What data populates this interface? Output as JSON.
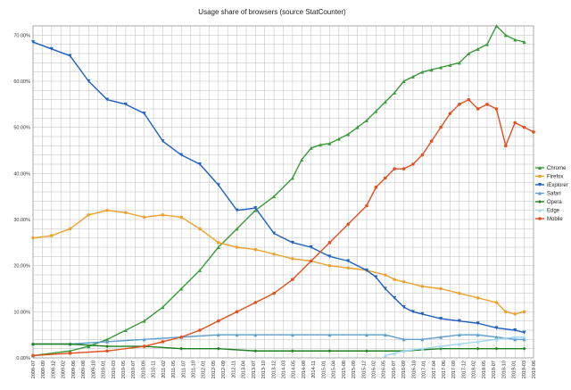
{
  "chart_data": {
    "type": "line",
    "title": "Usage share of browsers (source StatCounter)",
    "xlabel": "",
    "ylabel": "",
    "ylim": [
      0,
      72
    ],
    "y_ticks": [
      0,
      10,
      20,
      30,
      40,
      50,
      60,
      70
    ],
    "y_tick_labels": [
      "0.00%",
      "10.00%",
      "20.00%",
      "30.00%",
      "40.00%",
      "50.00%",
      "60.00%",
      "70.00%"
    ],
    "x_tick_labels": [
      "2008-07",
      "2008-09",
      "2008-12",
      "2009-02",
      "2009-06",
      "2009-08",
      "2009-10",
      "2010-01",
      "2010-03",
      "2010-05",
      "2010-07",
      "2010-09",
      "2010-11",
      "2011-02",
      "2011-05",
      "2011-07",
      "2011-10",
      "2012-01",
      "2012-05",
      "2012-09",
      "2012-11",
      "2013-04",
      "2013-07",
      "2013-10",
      "2013-12",
      "2014-03",
      "2014-05",
      "2014-08",
      "2014-11",
      "2015-01",
      "2015-04",
      "2015-08",
      "2015-09",
      "2015-12",
      "2016-02",
      "2016-05",
      "2016-07",
      "2016-09",
      "2016-10",
      "2017-01",
      "2017-04",
      "2017-06",
      "2017-09",
      "2017-12",
      "2018-02",
      "2018-05",
      "2018-07",
      "2018-10",
      "2019-01",
      "2019-03",
      "2019-06"
    ],
    "grid": true,
    "legend_position": "right",
    "series": [
      {
        "name": "Chrome",
        "color": "#3b9a3b",
        "marker": "triangle-up",
        "values": [
          [
            0,
            0.5
          ],
          [
            4,
            1.5
          ],
          [
            6,
            2.5
          ],
          [
            8,
            4
          ],
          [
            10,
            6
          ],
          [
            12,
            8
          ],
          [
            14,
            11
          ],
          [
            16,
            15
          ],
          [
            18,
            19
          ],
          [
            20,
            24
          ],
          [
            22,
            28
          ],
          [
            24,
            32
          ],
          [
            26,
            35
          ],
          [
            28,
            39
          ],
          [
            29,
            43
          ],
          [
            30,
            45.5
          ],
          [
            31,
            46.2
          ],
          [
            32,
            46.5
          ],
          [
            33,
            47.5
          ],
          [
            34,
            48.5
          ],
          [
            35,
            50
          ],
          [
            36,
            51.5
          ],
          [
            37,
            53.5
          ],
          [
            38,
            55.5
          ],
          [
            39,
            57.5
          ],
          [
            40,
            60
          ],
          [
            41,
            61
          ],
          [
            42,
            62
          ],
          [
            43,
            62.5
          ],
          [
            44,
            63
          ],
          [
            45,
            63.5
          ],
          [
            46,
            64
          ],
          [
            47,
            66
          ],
          [
            48,
            67
          ],
          [
            49,
            68
          ],
          [
            50,
            72
          ],
          [
            51,
            70
          ],
          [
            52,
            69
          ],
          [
            53,
            68.5
          ]
        ]
      },
      {
        "name": "Firefox",
        "color": "#f0a030",
        "marker": "circle",
        "values": [
          [
            0,
            26
          ],
          [
            2,
            26.5
          ],
          [
            4,
            28
          ],
          [
            6,
            31
          ],
          [
            8,
            32
          ],
          [
            10,
            31.5
          ],
          [
            12,
            30.5
          ],
          [
            14,
            31
          ],
          [
            16,
            30.5
          ],
          [
            18,
            28
          ],
          [
            20,
            25
          ],
          [
            22,
            24
          ],
          [
            24,
            23.5
          ],
          [
            26,
            22.5
          ],
          [
            28,
            21.5
          ],
          [
            30,
            21
          ],
          [
            32,
            20
          ],
          [
            34,
            19.5
          ],
          [
            36,
            19
          ],
          [
            38,
            18
          ],
          [
            39,
            17
          ],
          [
            40,
            16.5
          ],
          [
            42,
            15.5
          ],
          [
            44,
            15
          ],
          [
            46,
            14
          ],
          [
            48,
            13
          ],
          [
            50,
            12
          ],
          [
            51,
            10
          ],
          [
            52,
            9.5
          ],
          [
            53,
            10
          ]
        ]
      },
      {
        "name": "iExplorer",
        "color": "#1f5fbf",
        "marker": "triangle-down",
        "values": [
          [
            0,
            68.5
          ],
          [
            2,
            67
          ],
          [
            4,
            65.5
          ],
          [
            6,
            60
          ],
          [
            8,
            56
          ],
          [
            10,
            55
          ],
          [
            12,
            53
          ],
          [
            14,
            47
          ],
          [
            16,
            44
          ],
          [
            18,
            42
          ],
          [
            20,
            37.5
          ],
          [
            22,
            32
          ],
          [
            24,
            32.5
          ],
          [
            26,
            27
          ],
          [
            28,
            25
          ],
          [
            30,
            24
          ],
          [
            32,
            22
          ],
          [
            34,
            21
          ],
          [
            36,
            19
          ],
          [
            37,
            17.5
          ],
          [
            38,
            15
          ],
          [
            39,
            13
          ],
          [
            40,
            11
          ],
          [
            41,
            10
          ],
          [
            42,
            9.5
          ],
          [
            44,
            8.5
          ],
          [
            46,
            8
          ],
          [
            48,
            7.5
          ],
          [
            50,
            6.5
          ],
          [
            52,
            6
          ],
          [
            53,
            5.5
          ]
        ]
      },
      {
        "name": "Safari",
        "color": "#5f9fd0",
        "marker": "triangle-up",
        "values": [
          [
            0,
            3
          ],
          [
            4,
            3
          ],
          [
            8,
            3.5
          ],
          [
            12,
            4
          ],
          [
            16,
            4.5
          ],
          [
            20,
            5
          ],
          [
            22,
            5
          ],
          [
            24,
            5
          ],
          [
            28,
            5
          ],
          [
            32,
            5
          ],
          [
            36,
            5
          ],
          [
            38,
            5
          ],
          [
            40,
            4
          ],
          [
            42,
            4
          ],
          [
            44,
            4.5
          ],
          [
            46,
            5
          ],
          [
            48,
            5
          ],
          [
            50,
            4.5
          ],
          [
            52,
            4
          ],
          [
            53,
            4
          ]
        ]
      },
      {
        "name": "Opera",
        "color": "#1f7f1f",
        "marker": "diamond",
        "values": [
          [
            0,
            3
          ],
          [
            4,
            3
          ],
          [
            8,
            2.5
          ],
          [
            12,
            2.5
          ],
          [
            16,
            2
          ],
          [
            20,
            2
          ],
          [
            24,
            1.5
          ],
          [
            28,
            1.5
          ],
          [
            32,
            1.5
          ],
          [
            36,
            1.5
          ],
          [
            40,
            1.5
          ],
          [
            44,
            2
          ],
          [
            48,
            2
          ],
          [
            50,
            2
          ],
          [
            53,
            2
          ]
        ]
      },
      {
        "name": "Edge",
        "color": "#9fd8f0",
        "marker": "triangle-up",
        "values": [
          [
            38,
            0.5
          ],
          [
            39,
            1
          ],
          [
            40,
            1.5
          ],
          [
            42,
            2
          ],
          [
            44,
            2.5
          ],
          [
            46,
            3
          ],
          [
            48,
            3.5
          ],
          [
            50,
            4
          ],
          [
            52,
            4.5
          ],
          [
            53,
            4.5
          ]
        ]
      },
      {
        "name": "Mobile",
        "color": "#e05020",
        "marker": "circle",
        "values": [
          [
            0,
            0.5
          ],
          [
            4,
            1
          ],
          [
            8,
            1.5
          ],
          [
            12,
            2.5
          ],
          [
            14,
            3.5
          ],
          [
            16,
            4.5
          ],
          [
            18,
            6
          ],
          [
            20,
            8
          ],
          [
            22,
            10
          ],
          [
            24,
            12
          ],
          [
            26,
            14
          ],
          [
            28,
            17
          ],
          [
            30,
            21
          ],
          [
            32,
            25
          ],
          [
            34,
            29
          ],
          [
            36,
            33
          ],
          [
            37,
            37
          ],
          [
            38,
            39
          ],
          [
            39,
            41
          ],
          [
            40,
            41
          ],
          [
            41,
            42
          ],
          [
            42,
            44
          ],
          [
            43,
            47
          ],
          [
            44,
            50
          ],
          [
            45,
            53
          ],
          [
            46,
            55
          ],
          [
            47,
            56
          ],
          [
            48,
            54
          ],
          [
            49,
            55
          ],
          [
            50,
            54
          ],
          [
            51,
            46
          ],
          [
            52,
            51
          ],
          [
            53,
            50
          ],
          [
            54,
            49
          ]
        ]
      }
    ],
    "legend": [
      "Chrome",
      "Firefox",
      "iExplorer",
      "Safari",
      "Opera",
      "Edge",
      "Mobile"
    ]
  }
}
